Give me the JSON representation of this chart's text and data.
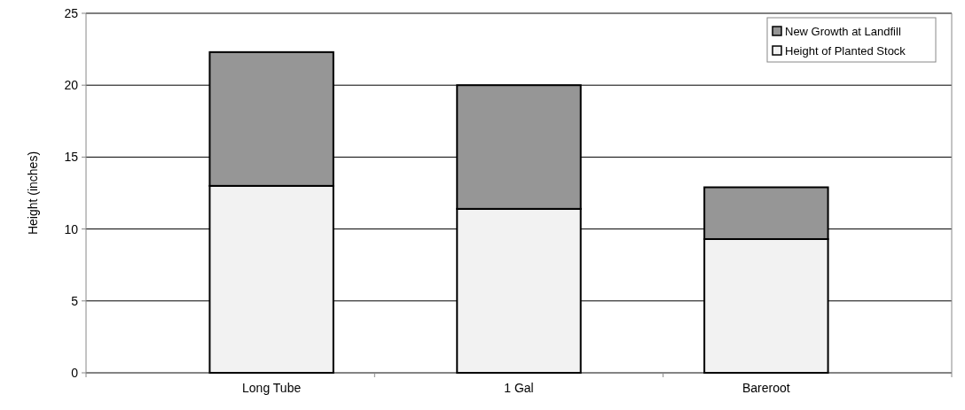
{
  "chart_data": {
    "type": "bar",
    "stacked": true,
    "ylabel": "Height (inches)",
    "categories": [
      "Long Tube",
      "1 Gal",
      "Bareroot"
    ],
    "series": [
      {
        "name": "Height of Planted Stock",
        "color": "#f2f2f2",
        "values": [
          13.0,
          11.4,
          9.3
        ]
      },
      {
        "name": "New Growth at Landfill",
        "color": "#969696",
        "values": [
          9.3,
          8.6,
          3.6
        ]
      }
    ],
    "ylim": [
      0,
      25
    ],
    "yticks": [
      0,
      5,
      10,
      15,
      20,
      25
    ],
    "grid": "y",
    "legend": "top right"
  }
}
